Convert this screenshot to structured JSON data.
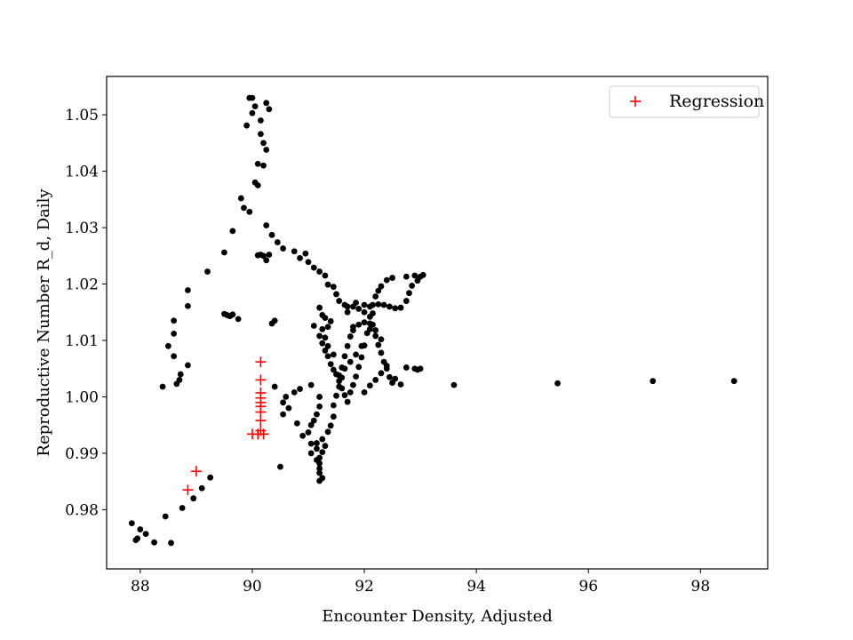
{
  "chart_data": {
    "type": "scatter",
    "title": "",
    "xlabel": "Encounter Density, Adjusted",
    "ylabel": "Reproductive Number R_d, Daily",
    "xlim": [
      87.4,
      99.2
    ],
    "ylim": [
      0.9695,
      1.0568
    ],
    "xticks": [
      88,
      90,
      92,
      94,
      96,
      98
    ],
    "yticks": [
      0.98,
      0.99,
      1.0,
      1.01,
      1.02,
      1.03,
      1.04,
      1.05
    ],
    "grid": false,
    "legend": "top-right",
    "colors": {
      "observed": "#000000",
      "regression": "#ff0000"
    },
    "series": [
      {
        "marker": "dot",
        "color": "#000000",
        "points": [
          [
            87.85,
            0.9776
          ],
          [
            87.95,
            0.9749
          ],
          [
            87.92,
            0.9746
          ],
          [
            88.0,
            0.9765
          ],
          [
            88.1,
            0.9757
          ],
          [
            88.25,
            0.9742
          ],
          [
            88.45,
            0.9788
          ],
          [
            88.55,
            0.9741
          ],
          [
            88.75,
            0.9803
          ],
          [
            88.95,
            0.982
          ],
          [
            89.1,
            0.9838
          ],
          [
            89.25,
            0.9857
          ],
          [
            88.4,
            1.0018
          ],
          [
            88.65,
            1.0023
          ],
          [
            88.7,
            1.003
          ],
          [
            88.72,
            1.004
          ],
          [
            88.85,
            1.0056
          ],
          [
            88.6,
            1.0072
          ],
          [
            88.5,
            1.009
          ],
          [
            88.6,
            1.0112
          ],
          [
            88.6,
            1.0135
          ],
          [
            88.85,
            1.0161
          ],
          [
            88.85,
            1.0189
          ],
          [
            89.2,
            1.0222
          ],
          [
            89.5,
            1.0256
          ],
          [
            89.5,
            1.0147
          ],
          [
            89.55,
            1.0145
          ],
          [
            89.6,
            1.0143
          ],
          [
            89.65,
            1.0146
          ],
          [
            89.75,
            1.0138
          ],
          [
            89.65,
            1.0294
          ],
          [
            89.8,
            1.0352
          ],
          [
            89.85,
            1.0335
          ],
          [
            89.95,
            1.0328
          ],
          [
            89.9,
            1.0481
          ],
          [
            89.95,
            1.053
          ],
          [
            90.0,
            1.053
          ],
          [
            90.05,
            1.0515
          ],
          [
            90.0,
            1.0503
          ],
          [
            90.05,
            1.038
          ],
          [
            90.1,
            1.0375
          ],
          [
            90.1,
            1.0413
          ],
          [
            90.15,
            1.049
          ],
          [
            90.15,
            1.0466
          ],
          [
            90.2,
            1.045
          ],
          [
            90.2,
            1.041
          ],
          [
            90.25,
            1.0438
          ],
          [
            90.25,
            1.0521
          ],
          [
            90.3,
            1.051
          ],
          [
            90.1,
            1.0251
          ],
          [
            90.15,
            1.0252
          ],
          [
            90.2,
            1.025
          ],
          [
            90.25,
            1.0242
          ],
          [
            90.3,
            1.0252
          ],
          [
            90.25,
            1.0304
          ],
          [
            90.35,
            1.0287
          ],
          [
            90.45,
            1.0274
          ],
          [
            90.55,
            1.0263
          ],
          [
            90.75,
            1.0258
          ],
          [
            90.85,
            1.0246
          ],
          [
            90.95,
            1.0254
          ],
          [
            91.0,
            1.0239
          ],
          [
            91.1,
            1.0229
          ],
          [
            91.2,
            1.0222
          ],
          [
            91.3,
            1.0215
          ],
          [
            91.35,
            1.0199
          ],
          [
            91.45,
            1.0195
          ],
          [
            91.5,
            1.0182
          ],
          [
            91.55,
            1.017
          ],
          [
            91.4,
            1.0134
          ],
          [
            90.35,
            1.013
          ],
          [
            90.4,
            1.0135
          ],
          [
            90.4,
            1.0018
          ],
          [
            90.55,
            0.999
          ],
          [
            90.6,
            1.0
          ],
          [
            90.55,
            0.9969
          ],
          [
            90.65,
            0.998
          ],
          [
            90.75,
            1.0008
          ],
          [
            90.85,
            1.0014
          ],
          [
            91.05,
            1.0021
          ],
          [
            90.5,
            0.9876
          ],
          [
            90.8,
            0.9953
          ],
          [
            90.9,
            0.9931
          ],
          [
            91.0,
            0.9937
          ],
          [
            91.05,
            0.995
          ],
          [
            91.1,
            0.9958
          ],
          [
            91.15,
            0.9969
          ],
          [
            91.2,
            0.9983
          ],
          [
            91.2,
            1.0
          ],
          [
            91.05,
            0.9917
          ],
          [
            91.05,
            0.99
          ],
          [
            91.15,
            0.9918
          ],
          [
            91.15,
            0.9908
          ],
          [
            91.2,
            0.9892
          ],
          [
            91.25,
            0.9902
          ],
          [
            91.25,
            0.9925
          ],
          [
            91.3,
            0.9913
          ],
          [
            91.15,
            0.9888
          ],
          [
            91.2,
            0.9882
          ],
          [
            91.2,
            0.9873
          ],
          [
            91.2,
            0.9865
          ],
          [
            91.25,
            0.9856
          ],
          [
            91.2,
            0.9851
          ],
          [
            91.35,
            0.9938
          ],
          [
            91.4,
            0.9949
          ],
          [
            91.45,
            0.9965
          ],
          [
            91.45,
            0.9985
          ],
          [
            91.5,
            1.0002
          ],
          [
            91.55,
            1.0018
          ],
          [
            91.6,
            1.0034
          ],
          [
            91.6,
            1.0052
          ],
          [
            91.65,
            1.0072
          ],
          [
            91.7,
            1.009
          ],
          [
            91.75,
            1.0107
          ],
          [
            91.8,
            1.0124
          ],
          [
            91.7,
            0.9991
          ],
          [
            91.75,
            1.0008
          ],
          [
            91.8,
            1.0021
          ],
          [
            91.85,
            1.0036
          ],
          [
            91.9,
            1.0053
          ],
          [
            91.95,
            1.007
          ],
          [
            92.0,
            1.0091
          ],
          [
            92.05,
            1.0113
          ],
          [
            92.1,
            1.013
          ],
          [
            92.15,
            1.0148
          ],
          [
            92.15,
            1.0163
          ],
          [
            92.2,
            1.0178
          ],
          [
            92.25,
            1.0188
          ],
          [
            92.3,
            1.0196
          ],
          [
            92.4,
            1.0207
          ],
          [
            92.5,
            1.0211
          ],
          [
            92.75,
            1.0213
          ],
          [
            92.9,
            1.0215
          ],
          [
            92.95,
            1.0206
          ],
          [
            93.0,
            1.0213
          ],
          [
            93.05,
            1.0216
          ],
          [
            92.85,
            1.0197
          ],
          [
            92.8,
            1.0184
          ],
          [
            92.75,
            1.017
          ],
          [
            92.65,
            1.0158
          ],
          [
            92.55,
            1.0157
          ],
          [
            92.45,
            1.016
          ],
          [
            92.35,
            1.0163
          ],
          [
            92.25,
            1.0164
          ],
          [
            92.1,
            1.016
          ],
          [
            92.0,
            1.0163
          ],
          [
            91.85,
            1.0167
          ],
          [
            91.7,
            1.016
          ],
          [
            91.65,
            1.0163
          ],
          [
            91.7,
            1.015
          ],
          [
            91.2,
            1.0158
          ],
          [
            91.25,
            1.0145
          ],
          [
            91.3,
            1.014
          ],
          [
            91.35,
            1.0124
          ],
          [
            91.1,
            1.0126
          ],
          [
            91.2,
            1.0108
          ],
          [
            91.25,
            1.0095
          ],
          [
            91.3,
            1.0082
          ],
          [
            91.35,
            1.0072
          ],
          [
            91.4,
            1.0058
          ],
          [
            91.45,
            1.0048
          ],
          [
            91.5,
            1.004
          ],
          [
            91.55,
            1.0028
          ],
          [
            91.6,
            1.0015
          ],
          [
            91.65,
            1.0003
          ],
          [
            91.8,
            1.0118
          ],
          [
            91.9,
            1.0128
          ],
          [
            92.0,
            1.0132
          ],
          [
            92.1,
            1.012
          ],
          [
            92.2,
            1.0108
          ],
          [
            92.25,
            1.0092
          ],
          [
            92.3,
            1.0078
          ],
          [
            92.35,
            1.0062
          ],
          [
            92.4,
            1.005
          ],
          [
            92.45,
            1.0035
          ],
          [
            92.5,
            1.0025
          ],
          [
            92.3,
            1.0102
          ],
          [
            92.2,
            1.0118
          ],
          [
            92.15,
            1.0128
          ],
          [
            92.1,
            1.0142
          ],
          [
            92.0,
            1.015
          ],
          [
            91.9,
            1.0156
          ],
          [
            91.8,
            1.016
          ],
          [
            91.95,
            1.009
          ],
          [
            91.85,
            1.0075
          ],
          [
            91.75,
            1.0062
          ],
          [
            91.65,
            1.005
          ],
          [
            91.55,
            1.0038
          ],
          [
            91.45,
            1.0075
          ],
          [
            91.35,
            1.009
          ],
          [
            91.3,
            1.0105
          ],
          [
            91.25,
            1.012
          ],
          [
            92.0,
            1.0008
          ],
          [
            92.1,
            1.002
          ],
          [
            92.2,
            1.003
          ],
          [
            92.3,
            1.0042
          ],
          [
            92.4,
            1.0055
          ],
          [
            92.55,
            1.0032
          ],
          [
            92.65,
            1.0022
          ],
          [
            92.75,
            1.0052
          ],
          [
            92.9,
            1.005
          ],
          [
            92.95,
            1.0048
          ],
          [
            93.0,
            1.005
          ],
          [
            93.6,
            1.0021
          ],
          [
            95.45,
            1.0024
          ],
          [
            97.15,
            1.0028
          ],
          [
            98.6,
            1.0028
          ]
        ]
      },
      {
        "name": "Regression",
        "marker": "plus",
        "color": "#ff0000",
        "points": [
          [
            88.85,
            0.9835
          ],
          [
            89.0,
            0.9868
          ],
          [
            90.0,
            0.9934
          ],
          [
            90.1,
            0.9934
          ],
          [
            90.2,
            0.9934
          ],
          [
            90.15,
            0.994
          ],
          [
            90.15,
            0.9958
          ],
          [
            90.15,
            0.9973
          ],
          [
            90.15,
            0.9983
          ],
          [
            90.15,
            0.999
          ],
          [
            90.15,
            0.9998
          ],
          [
            90.15,
            1.0007
          ],
          [
            90.15,
            1.003
          ],
          [
            90.15,
            1.0062
          ]
        ]
      }
    ]
  }
}
